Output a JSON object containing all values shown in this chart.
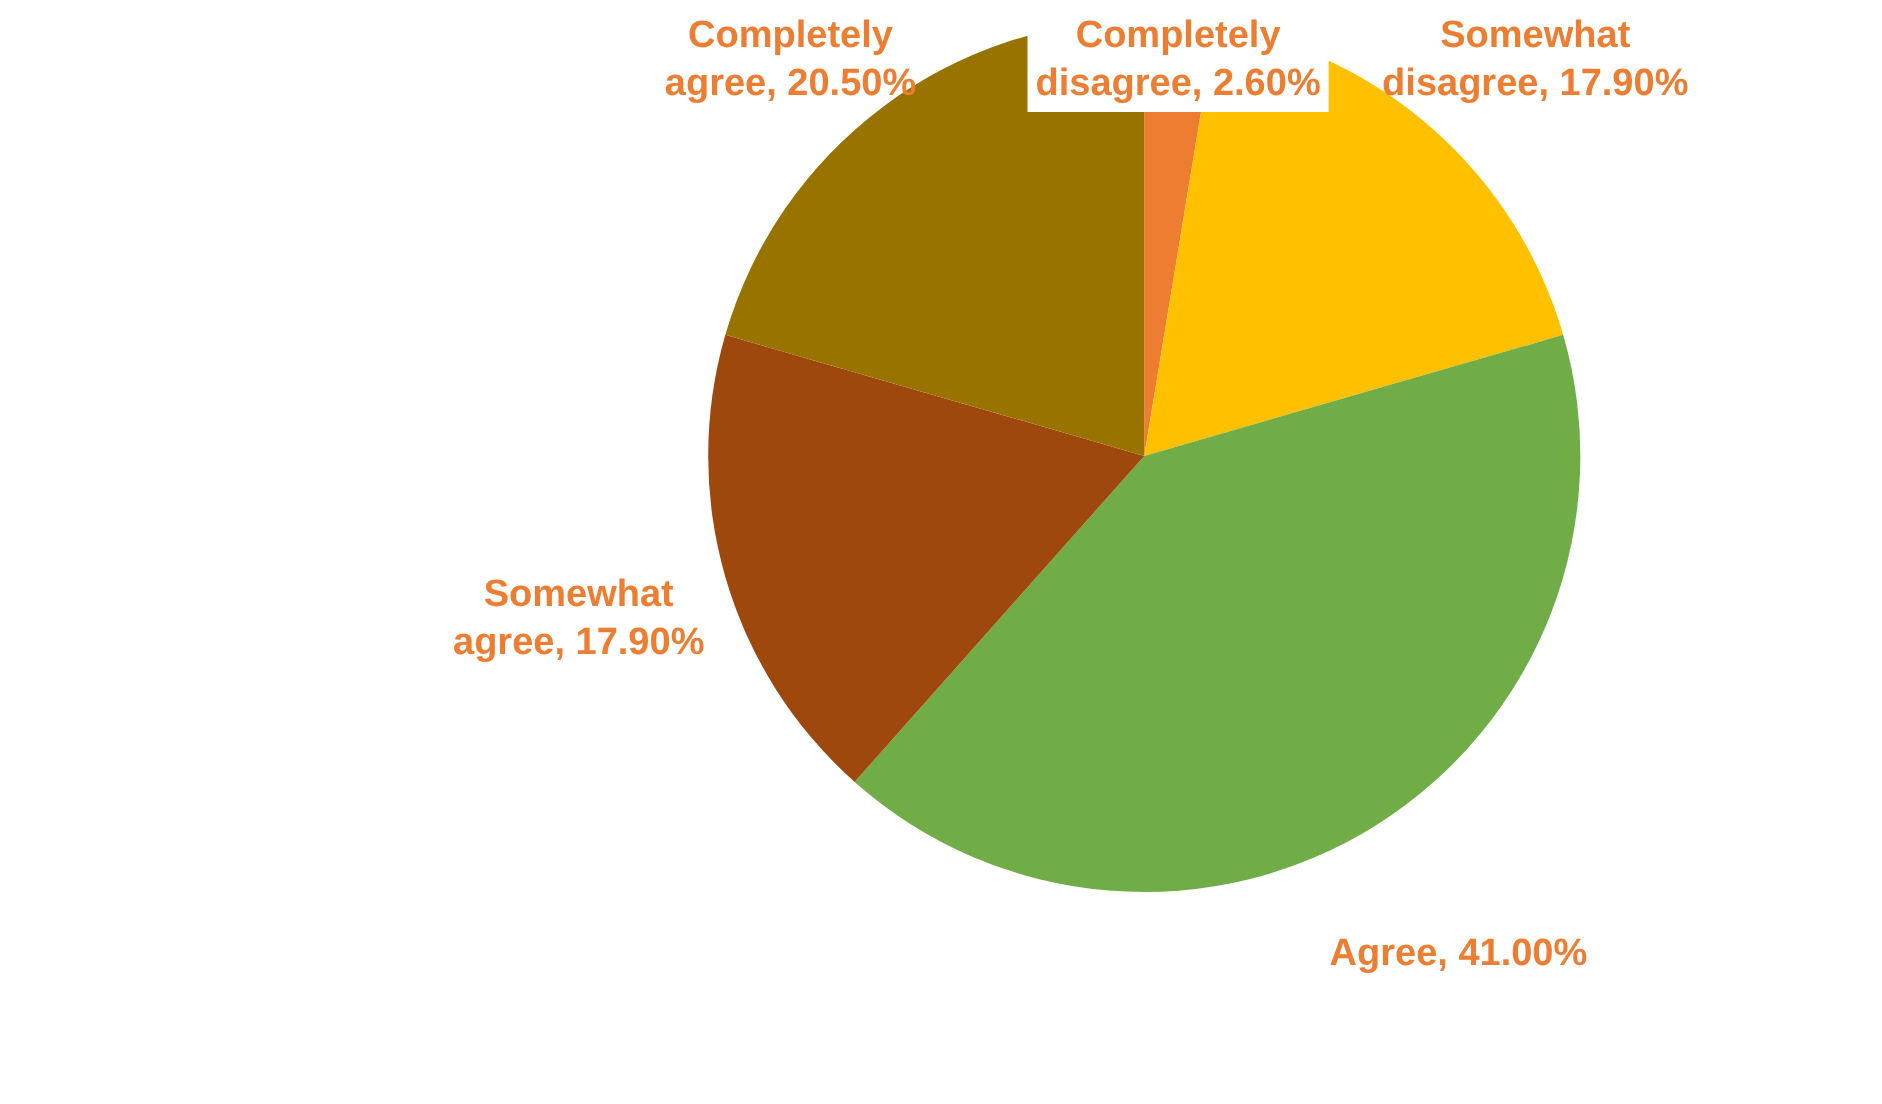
{
  "chart_data": {
    "type": "pie",
    "categories": [
      "Completely disagree",
      "Somewhat disagree",
      "Agree",
      "Somewhat agree",
      "Completely agree"
    ],
    "values": [
      2.6,
      17.9,
      41.0,
      17.9,
      20.5
    ],
    "value_labels": [
      "2.60%",
      "17.90%",
      "41.00%",
      "17.90%",
      "20.50%"
    ],
    "colors": [
      "#ed7d31",
      "#ffc000",
      "#70ad47",
      "#9e480e",
      "#997300"
    ],
    "legend": false
  }
}
